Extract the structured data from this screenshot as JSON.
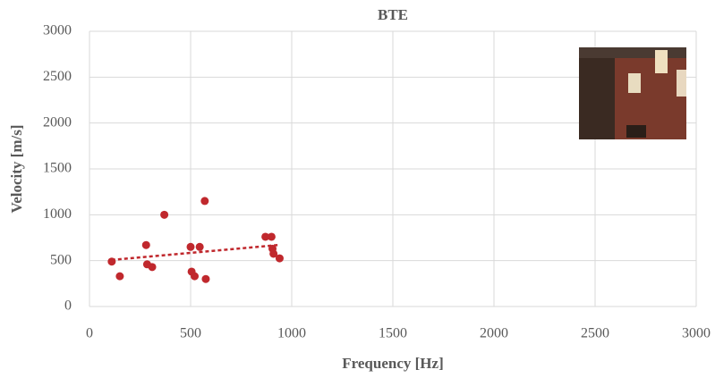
{
  "chart_data": {
    "type": "scatter",
    "title": "BTE",
    "x_label": "Frequency [Hz]",
    "y_label": "Velocity [m/s]",
    "series": [
      {
        "color": "#c0282d",
        "x": [
          110,
          150,
          280,
          285,
          310,
          370,
          500,
          505,
          520,
          545,
          570,
          575,
          870,
          900,
          905,
          910,
          940
        ],
        "values": [
          490,
          330,
          670,
          460,
          430,
          1000,
          650,
          380,
          330,
          650,
          1150,
          300,
          760,
          760,
          630,
          575,
          525
        ]
      }
    ],
    "trendline": "linear",
    "xlim": [
      0,
      3000
    ],
    "xticks": [
      0,
      500,
      1000,
      1500,
      2000,
      2500,
      3000
    ],
    "ylim": [
      0,
      3000
    ],
    "yticks": [
      0,
      500,
      1000,
      1500,
      2000,
      2500,
      3000
    ],
    "grid": true
  }
}
